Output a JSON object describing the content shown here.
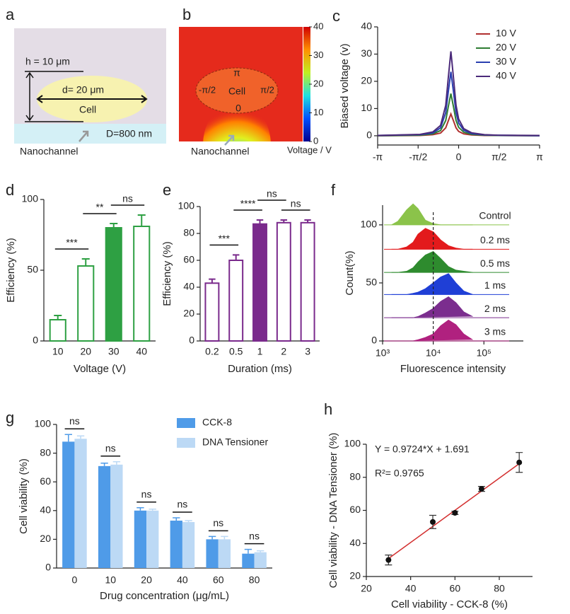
{
  "panel_a": {
    "label": "a",
    "h_label": "h = 10 μm",
    "d_label": "d= 20 μm",
    "cell_label": "Cell",
    "channel_width_label": "D=800 nm",
    "channel_label": "Nanochannel"
  },
  "panel_b": {
    "label": "b",
    "cell_label": "Cell",
    "top_label": "π",
    "left_label": "-π/2",
    "right_label": "π/2",
    "bottom_label": "0",
    "channel_label": "Nanochannel",
    "colorbar": {
      "title": "Voltage / V",
      "lim": [
        0,
        40
      ],
      "ticks": [
        0,
        10,
        20,
        30,
        40
      ]
    }
  },
  "chart_data": [
    {
      "label": "c",
      "type": "line",
      "ylabel": "Biased voltage (v)",
      "x": [
        -3.14,
        -1.5,
        -1,
        -0.7,
        -0.5,
        -0.4,
        -0.3,
        -0.2,
        -0.1,
        0,
        0.2,
        0.5,
        1,
        1.5,
        3.14
      ],
      "xlim": [
        -3.1416,
        3.1416
      ],
      "xticks": [
        {
          "value": -3.1416,
          "label": "-π"
        },
        {
          "value": -1.5708,
          "label": "-π/2"
        },
        0,
        {
          "value": 1.5708,
          "label": "π/2"
        },
        {
          "value": 3.1416,
          "label": "π"
        }
      ],
      "ylim": [
        -3.4,
        40
      ],
      "yticks": [
        0,
        10,
        20,
        30,
        40
      ],
      "legend": "upper right",
      "series": [
        {
          "name": "10 V",
          "color": "#b0302f",
          "values": [
            0,
            0.1,
            0.4,
            1,
            2.9,
            5.5,
            8,
            5.5,
            2.9,
            1.6,
            0.7,
            0.3,
            0.1,
            0.1,
            0
          ]
        },
        {
          "name": "20 V",
          "color": "#2e7d32",
          "values": [
            0,
            0.2,
            0.7,
            1.9,
            5.6,
            10.7,
            15.5,
            10.7,
            5.6,
            3.1,
            1.3,
            0.5,
            0.2,
            0.1,
            0
          ]
        },
        {
          "name": "30 V",
          "color": "#2a3fb0",
          "values": [
            0.1,
            0.4,
            1,
            2.9,
            8.5,
            16.2,
            23.5,
            16.2,
            8.5,
            4.7,
            2,
            0.8,
            0.3,
            0.2,
            0
          ]
        },
        {
          "name": "40 V",
          "color": "#4b2a7a",
          "values": [
            0.1,
            0.5,
            1.4,
            3.8,
            11.2,
            21.4,
            31,
            21.4,
            11.2,
            6.2,
            2.6,
            1.1,
            0.4,
            0.2,
            0.1
          ]
        }
      ]
    },
    {
      "label": "d",
      "type": "bar",
      "xlabel": "Voltage (V)",
      "ylabel": "Efficiency (%)",
      "categories": [
        "10",
        "20",
        "30",
        "40"
      ],
      "values": [
        15,
        53,
        80,
        81
      ],
      "errors": [
        3,
        5,
        3,
        8
      ],
      "colors": [
        "#ffffff",
        "#ffffff",
        "#2ea043",
        "#ffffff"
      ],
      "edge_color": "#2ea043",
      "ylim": [
        0,
        100
      ],
      "yticks": [
        0,
        50,
        100
      ],
      "annotations": [
        "***",
        "**",
        "ns"
      ]
    },
    {
      "label": "e",
      "type": "bar",
      "xlabel": "Duration (ms)",
      "ylabel": "Efficiency (%)",
      "categories": [
        "0.2",
        "0.5",
        "1",
        "2",
        "3"
      ],
      "values": [
        43,
        60,
        87,
        88,
        88
      ],
      "errors": [
        3,
        4,
        3,
        2,
        2
      ],
      "colors": [
        "#ffffff",
        "#ffffff",
        "#7a2a8c",
        "#ffffff",
        "#ffffff"
      ],
      "edge_color": "#7a2a8c",
      "ylim": [
        0,
        100
      ],
      "yticks": [
        0,
        20,
        40,
        60,
        80,
        100
      ],
      "annotations": [
        "***",
        "****",
        "ns",
        "ns"
      ]
    },
    {
      "label": "f",
      "type": "ridgeline",
      "xlabel": "Fluorescence intensity",
      "ylabel": "Count(%)",
      "log_x": true,
      "x": [
        1500,
        2000,
        3000,
        4000,
        5000,
        7000,
        10000,
        14000,
        20000,
        28000,
        40000,
        60000
      ],
      "xlim": [
        1000,
        600000
      ],
      "xticks": [
        {
          "value": 1000,
          "label": "10³"
        },
        {
          "value": 10000,
          "label": "10⁴"
        },
        {
          "value": 100000,
          "label": "10⁵"
        }
      ],
      "ylim": [
        0,
        117
      ],
      "yticks": [
        0,
        50,
        100
      ],
      "vline": 10000,
      "series": [
        {
          "name": "Control",
          "color": "#8bc34a",
          "baseline": 100,
          "values": [
            0,
            3,
            13,
            18,
            14,
            4,
            1,
            0,
            0,
            0,
            0,
            0
          ]
        },
        {
          "name": "0.2 ms",
          "color": "#e31a1c",
          "baseline": 79,
          "values": [
            0,
            0,
            2,
            6,
            13,
            18,
            15,
            8,
            3,
            1,
            0,
            0
          ]
        },
        {
          "name": "0.5 ms",
          "color": "#2e8b2e",
          "baseline": 59,
          "values": [
            0,
            0,
            1,
            4,
            9,
            15,
            18,
            12,
            5,
            2,
            1,
            0
          ]
        },
        {
          "name": "1 ms",
          "color": "#1f3fd6",
          "baseline": 40,
          "values": [
            0,
            0,
            0,
            1,
            2,
            5,
            10,
            15,
            18,
            10,
            3,
            0
          ]
        },
        {
          "name": "2 ms",
          "color": "#7b2d8e",
          "baseline": 20,
          "values": [
            0,
            0,
            0,
            0,
            1,
            4,
            8,
            14,
            18,
            13,
            5,
            1
          ]
        },
        {
          "name": "3 ms",
          "color": "#b0217f",
          "baseline": 0,
          "values": [
            0,
            0,
            0,
            0,
            1,
            3,
            6,
            13,
            18,
            14,
            6,
            1
          ]
        }
      ]
    },
    {
      "label": "g",
      "type": "grouped_bar",
      "xlabel": "Drug concentration (μg/mL)",
      "ylabel": "Cell viability (%)",
      "categories": [
        "0",
        "10",
        "20",
        "40",
        "60",
        "80"
      ],
      "ylim": [
        0,
        100
      ],
      "yticks": [
        0,
        20,
        40,
        60,
        80,
        100
      ],
      "legend": "upper right",
      "series": [
        {
          "name": "CCK-8",
          "color": "#4f9be8",
          "values": [
            88,
            71,
            40,
            33,
            20,
            10
          ],
          "errors": [
            5,
            2,
            2,
            2,
            2,
            3
          ]
        },
        {
          "name": "DNA Tensioner",
          "color": "#bcd9f5",
          "values": [
            90,
            72,
            40,
            32,
            20,
            11
          ],
          "errors": [
            2,
            2,
            1,
            1,
            2,
            1
          ]
        }
      ],
      "annotations": [
        "ns",
        "ns",
        "ns",
        "ns",
        "ns",
        "ns"
      ]
    },
    {
      "label": "h",
      "type": "scatter",
      "xlabel": "Cell viability - CCK-8 (%)",
      "ylabel": "Cell viability - DNA Tensioner (%)",
      "x": [
        30,
        50,
        60,
        72,
        89
      ],
      "values": [
        30,
        53,
        58.5,
        73,
        89
      ],
      "errors": [
        3,
        4,
        1,
        1.5,
        6
      ],
      "xlim": [
        20,
        95
      ],
      "xticks": [
        20,
        40,
        60,
        80
      ],
      "ylim": [
        20,
        100
      ],
      "yticks": [
        20,
        40,
        60,
        80,
        100
      ],
      "color": "#111111",
      "fit": {
        "slope": 0.9724,
        "intercept": 1.691
      },
      "fit_color": "#d32f2f",
      "annotations": [
        "Y = 0.9724*X + 1.691",
        "R²= 0.9765"
      ]
    }
  ]
}
